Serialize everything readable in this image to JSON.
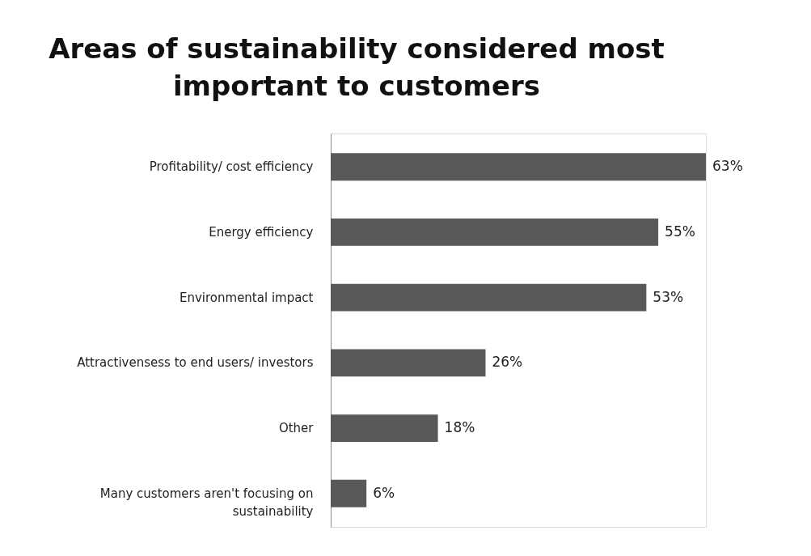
{
  "chart_data": {
    "type": "bar",
    "orientation": "horizontal",
    "title": "Areas of sustainability considered most important to customers",
    "categories": [
      "Profitability/ cost efficiency",
      "Energy efficiency",
      "Environmental impact",
      "Attractivensess to end users/ investors",
      "Other",
      "Many customers aren't focusing on sustainability"
    ],
    "values": [
      63,
      55,
      53,
      26,
      18,
      6
    ],
    "value_labels": [
      "63%",
      "55%",
      "53%",
      "26%",
      "18%",
      "6%"
    ],
    "color": "#595959",
    "tick_labels": "y"
  }
}
